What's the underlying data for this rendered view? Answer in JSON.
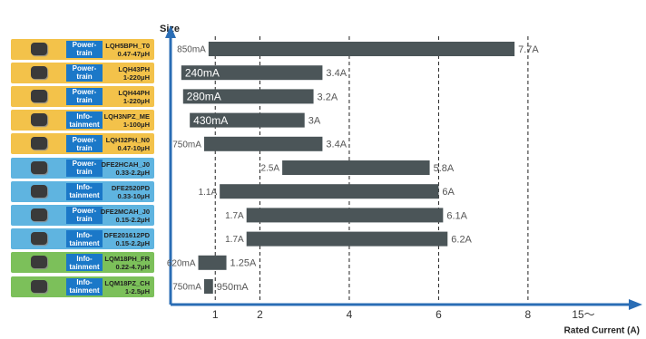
{
  "chart_data": {
    "type": "range-bar",
    "y_axis_label": "Size",
    "x_axis_label": "Rated Current (A)",
    "x_axis_end_label": "15～",
    "xlim": [
      0,
      10.5
    ],
    "xticks": [
      1,
      2,
      4,
      6,
      8
    ],
    "grid": true,
    "bar_color": "#4b5558",
    "axis_color": "#2a6db5",
    "products": [
      {
        "name": "LQH5BPH_T0",
        "inductance": "0.47-47μH",
        "application": "Power-train",
        "color": "#f3c24a"
      },
      {
        "name": "LQH43PH",
        "inductance": "1-220μH",
        "application": "Power-train",
        "color": "#f3c24a"
      },
      {
        "name": "LQH44PH",
        "inductance": "1-220μH",
        "application": "Power-train",
        "color": "#f3c24a"
      },
      {
        "name": "LQH3NPZ_ME",
        "inductance": "1-100μH",
        "application": "Info-tainment",
        "color": "#f3c24a"
      },
      {
        "name": "LQH32PH_N0",
        "inductance": "0.47-10μH",
        "application": "Power-train",
        "color": "#f3c24a"
      },
      {
        "name": "DFE2HCAH_J0",
        "inductance": "0.33-2.2μH",
        "application": "Power-train",
        "color": "#5fb4e0"
      },
      {
        "name": "DFE2520PD",
        "inductance": "0.33-10μH",
        "application": "Info-tainment",
        "color": "#5fb4e0"
      },
      {
        "name": "DFE2MCAH_J0",
        "inductance": "0.15-2.2μH",
        "application": "Power-train",
        "color": "#5fb4e0"
      },
      {
        "name": "DFE201612PD",
        "inductance": "0.15-2.2μH",
        "application": "Info-tainment",
        "color": "#5fb4e0"
      },
      {
        "name": "LQM18PH_FR",
        "inductance": "0.22-4.7μH",
        "application": "Info-tainment",
        "color": "#7cc05a"
      },
      {
        "name": "LQM18PZ_CH",
        "inductance": "1-2.5μH",
        "application": "Info-tainment",
        "color": "#7cc05a"
      }
    ],
    "start_values": [
      0.85,
      0.24,
      0.28,
      0.43,
      0.75,
      2.5,
      1.1,
      1.7,
      1.7,
      0.62,
      0.75
    ],
    "start_value_labels": [
      "850mA",
      "240mA",
      "280mA",
      "430mA",
      "750mA",
      "2.5A",
      "1.1A",
      "1.7A",
      "1.7A",
      "620mA",
      "750mA"
    ],
    "start_label_inside": [
      false,
      true,
      true,
      true,
      false,
      false,
      false,
      false,
      false,
      false,
      false
    ],
    "end_values": [
      7.7,
      3.4,
      3.2,
      3,
      3.4,
      5.8,
      6,
      6.1,
      6.2,
      1.25,
      0.95
    ],
    "end_value_labels": [
      "7.7A",
      "3.4A",
      "3.2A",
      "3A",
      "3.4A",
      "5.8A",
      "6A",
      "6.1A",
      "6.2A",
      "1.25A",
      "950mA"
    ]
  }
}
